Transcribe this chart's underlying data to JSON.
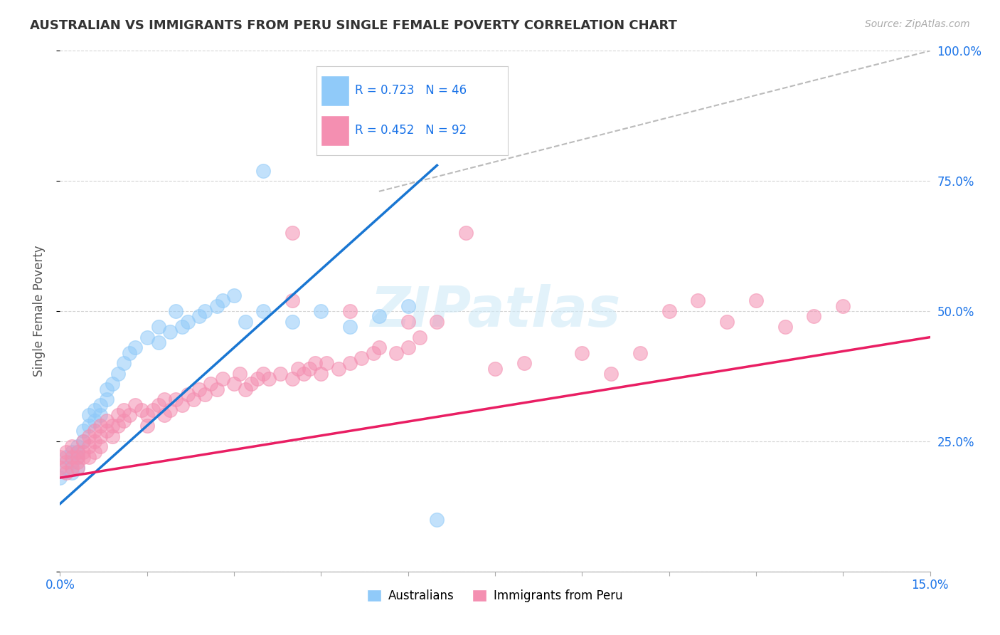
{
  "title": "AUSTRALIAN VS IMMIGRANTS FROM PERU SINGLE FEMALE POVERTY CORRELATION CHART",
  "source": "Source: ZipAtlas.com",
  "ylabel": "Single Female Poverty",
  "xlim": [
    0.0,
    0.15
  ],
  "ylim": [
    0.0,
    1.0
  ],
  "background_color": "#ffffff",
  "grid_color": "#d0d0d0",
  "color_aus": "#90caf9",
  "color_peru": "#f48fb1",
  "color_aus_line": "#1976d2",
  "color_peru_line": "#e91e63",
  "color_diagonal": "#bbbbbb",
  "legend_text1": "R = 0.723   N = 46",
  "legend_text2": "R = 0.452   N = 92",
  "legend_label1": "Australians",
  "legend_label2": "Immigrants from Peru",
  "aus_scatter_x": [
    0.0,
    0.001,
    0.001,
    0.002,
    0.002,
    0.002,
    0.003,
    0.003,
    0.003,
    0.003,
    0.004,
    0.004,
    0.005,
    0.005,
    0.006,
    0.006,
    0.007,
    0.007,
    0.008,
    0.008,
    0.009,
    0.01,
    0.011,
    0.012,
    0.013,
    0.015,
    0.017,
    0.02,
    0.022,
    0.025,
    0.028,
    0.03,
    0.032,
    0.035,
    0.017,
    0.019,
    0.021,
    0.024,
    0.027,
    0.04,
    0.045,
    0.05,
    0.055,
    0.06,
    0.035,
    0.065
  ],
  "aus_scatter_y": [
    0.18,
    0.2,
    0.22,
    0.21,
    0.23,
    0.19,
    0.24,
    0.22,
    0.2,
    0.23,
    0.25,
    0.27,
    0.28,
    0.3,
    0.29,
    0.31,
    0.32,
    0.3,
    0.33,
    0.35,
    0.36,
    0.38,
    0.4,
    0.42,
    0.43,
    0.45,
    0.47,
    0.5,
    0.48,
    0.5,
    0.52,
    0.53,
    0.48,
    0.5,
    0.44,
    0.46,
    0.47,
    0.49,
    0.51,
    0.48,
    0.5,
    0.47,
    0.49,
    0.51,
    0.77,
    0.1
  ],
  "peru_scatter_x": [
    0.0,
    0.0,
    0.001,
    0.001,
    0.001,
    0.002,
    0.002,
    0.002,
    0.003,
    0.003,
    0.003,
    0.003,
    0.004,
    0.004,
    0.004,
    0.005,
    0.005,
    0.005,
    0.006,
    0.006,
    0.006,
    0.007,
    0.007,
    0.007,
    0.008,
    0.008,
    0.009,
    0.009,
    0.01,
    0.01,
    0.011,
    0.011,
    0.012,
    0.013,
    0.014,
    0.015,
    0.015,
    0.016,
    0.017,
    0.018,
    0.018,
    0.019,
    0.02,
    0.021,
    0.022,
    0.023,
    0.024,
    0.025,
    0.026,
    0.027,
    0.028,
    0.03,
    0.031,
    0.032,
    0.033,
    0.034,
    0.035,
    0.036,
    0.038,
    0.04,
    0.041,
    0.042,
    0.043,
    0.044,
    0.045,
    0.046,
    0.048,
    0.05,
    0.052,
    0.054,
    0.055,
    0.058,
    0.06,
    0.062,
    0.065,
    0.07,
    0.075,
    0.08,
    0.09,
    0.095,
    0.1,
    0.105,
    0.11,
    0.115,
    0.12,
    0.125,
    0.13,
    0.135,
    0.04,
    0.04,
    0.05,
    0.06
  ],
  "peru_scatter_y": [
    0.2,
    0.22,
    0.21,
    0.23,
    0.19,
    0.22,
    0.2,
    0.24,
    0.21,
    0.23,
    0.22,
    0.2,
    0.25,
    0.23,
    0.22,
    0.26,
    0.24,
    0.22,
    0.27,
    0.25,
    0.23,
    0.28,
    0.26,
    0.24,
    0.29,
    0.27,
    0.28,
    0.26,
    0.3,
    0.28,
    0.31,
    0.29,
    0.3,
    0.32,
    0.31,
    0.28,
    0.3,
    0.31,
    0.32,
    0.3,
    0.33,
    0.31,
    0.33,
    0.32,
    0.34,
    0.33,
    0.35,
    0.34,
    0.36,
    0.35,
    0.37,
    0.36,
    0.38,
    0.35,
    0.36,
    0.37,
    0.38,
    0.37,
    0.38,
    0.37,
    0.39,
    0.38,
    0.39,
    0.4,
    0.38,
    0.4,
    0.39,
    0.4,
    0.41,
    0.42,
    0.43,
    0.42,
    0.43,
    0.45,
    0.48,
    0.65,
    0.39,
    0.4,
    0.42,
    0.38,
    0.42,
    0.5,
    0.52,
    0.48,
    0.52,
    0.47,
    0.49,
    0.51,
    0.65,
    0.52,
    0.5,
    0.48
  ],
  "aus_line_x": [
    0.0,
    0.065
  ],
  "aus_line_y": [
    0.13,
    0.78
  ],
  "peru_line_x": [
    0.0,
    0.15
  ],
  "peru_line_y": [
    0.18,
    0.45
  ],
  "diag_line_x": [
    0.055,
    0.15
  ],
  "diag_line_y": [
    0.73,
    1.0
  ],
  "ytick_right": [
    0.25,
    0.5,
    0.75,
    1.0
  ],
  "ytick_right_labels": [
    "25.0%",
    "50.0%",
    "75.0%",
    "100.0%"
  ]
}
